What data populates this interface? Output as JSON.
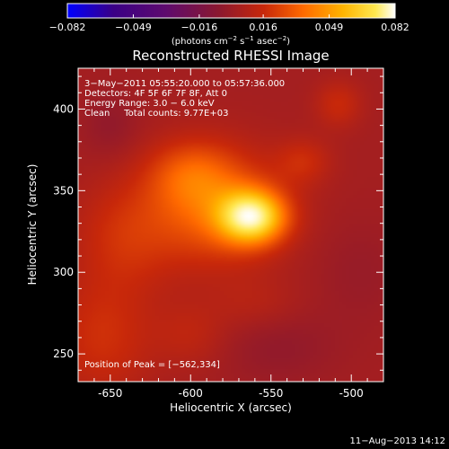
{
  "chart_data": {
    "type": "heatmap",
    "title": "Reconstructed RHESSI Image",
    "xlabel": "Heliocentric X (arcsec)",
    "ylabel": "Heliocentric Y (arcsec)",
    "xlim": [
      -670,
      -480
    ],
    "ylim": [
      233,
      425
    ],
    "x_ticks": [
      -650,
      -600,
      -550,
      -500
    ],
    "x_tick_labels": [
      "-650",
      "-600",
      "-550",
      "-500"
    ],
    "y_ticks": [
      250,
      300,
      350,
      400
    ],
    "y_tick_labels": [
      "250",
      "300",
      "350",
      "400"
    ],
    "colorbar": {
      "range": [
        -0.082,
        0.082
      ],
      "ticks": [
        -0.082,
        -0.049,
        -0.016,
        0.016,
        0.049,
        0.082
      ],
      "tick_labels": [
        "−0.082",
        "−0.049",
        "−0.016",
        "0.016",
        "0.049",
        "0.082"
      ],
      "unit_prefix": "(photons cm",
      "unit_sup1": "−2",
      "unit_mid": " s",
      "unit_sup2": "−1",
      "unit_mid2": " asec",
      "unit_sup3": "−2",
      "unit_suffix": ")"
    },
    "annotations": [
      "3−May−2011 05:55:20.000 to 05:57:36.000",
      "Detectors: 4F 5F 6F 7F 8F, Att 0",
      "Energy Range: 3.0 − 6.0 keV",
      "Clean     Total counts: 9.77E+03"
    ],
    "peak_label": "Position of Peak = [−562,334]",
    "peak": [
      -562,
      334
    ],
    "peak_value": 0.082,
    "sources": [
      {
        "x": -562,
        "y": 334,
        "sx": 14,
        "sy": 11,
        "amp": 0.072
      },
      {
        "x": -585,
        "y": 340,
        "sx": 28,
        "sy": 24,
        "amp": 0.03
      },
      {
        "x": -600,
        "y": 360,
        "sx": 18,
        "sy": 14,
        "amp": 0.018
      },
      {
        "x": -640,
        "y": 322,
        "sx": 22,
        "sy": 24,
        "amp": 0.014
      },
      {
        "x": -655,
        "y": 260,
        "sx": 22,
        "sy": 26,
        "amp": 0.014
      },
      {
        "x": -600,
        "y": 262,
        "sx": 16,
        "sy": 14,
        "amp": 0.008
      },
      {
        "x": -530,
        "y": 368,
        "sx": 12,
        "sy": 10,
        "amp": 0.012
      },
      {
        "x": -508,
        "y": 403,
        "sx": 10,
        "sy": 10,
        "amp": 0.012
      },
      {
        "x": -560,
        "y": 280,
        "sx": 20,
        "sy": 12,
        "amp": 0.006
      },
      {
        "x": -495,
        "y": 300,
        "sx": 18,
        "sy": 22,
        "amp": -0.004
      },
      {
        "x": -650,
        "y": 390,
        "sx": 12,
        "sy": 14,
        "amp": -0.006
      },
      {
        "x": -545,
        "y": 255,
        "sx": 25,
        "sy": 16,
        "amp": -0.006
      }
    ],
    "background": -0.012,
    "colormap": [
      "#0000ff",
      "#3a0086",
      "#5e0b6e",
      "#8a1830",
      "#c8280a",
      "#ff6a00",
      "#ffb400",
      "#ffe850",
      "#ffffff"
    ]
  },
  "footer": {
    "timestamp": "11−Aug−2013 14:12"
  }
}
